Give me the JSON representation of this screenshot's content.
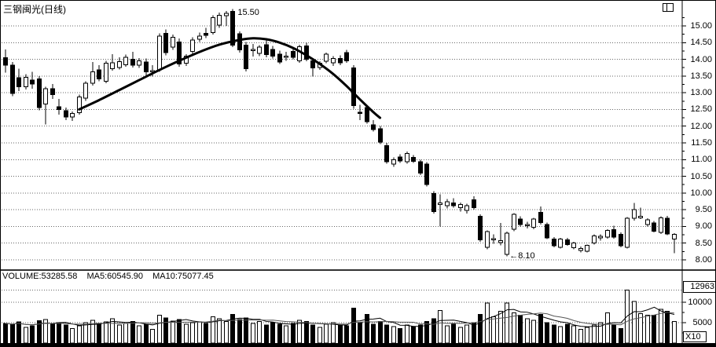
{
  "window": {
    "title": "三钢闽光(日线)"
  },
  "price_axis": {
    "tick_labels": [
      "15.00",
      "14.50",
      "14.00",
      "13.50",
      "13.00",
      "12.50",
      "12.00",
      "11.50",
      "11.00",
      "10.50",
      "10.00",
      "9.50",
      "9.00",
      "8.50",
      "8.00"
    ]
  },
  "volume_axis": {
    "max_label": "12963",
    "tick_labels": [
      "10000",
      "5000"
    ],
    "multiplier_label": "X10"
  },
  "volume_header": {
    "volume": "VOLUME:53285.58",
    "ma5": "MA5:60545.90",
    "ma10": "MA10:75077.45"
  },
  "annotations": {
    "peak": "15.50",
    "low": "←8.10"
  },
  "chart_data": [
    {
      "type": "candlestick",
      "title": "三钢闽光(日线)",
      "ylim": [
        7.8,
        15.6
      ],
      "grid": "dotted horizontal lines every 0.50",
      "legend_position": "none",
      "annotations": [
        {
          "day": 34,
          "price": 15.5,
          "label": "15.50"
        },
        {
          "day": 75,
          "price": 8.1,
          "label": "←8.10"
        }
      ],
      "ma_curve_points": [
        [
          11,
          12.5
        ],
        [
          14,
          12.78
        ],
        [
          17,
          13.08
        ],
        [
          20,
          13.38
        ],
        [
          23,
          13.68
        ],
        [
          26,
          13.96
        ],
        [
          29,
          14.22
        ],
        [
          32,
          14.44
        ],
        [
          35,
          14.58
        ],
        [
          37,
          14.63
        ],
        [
          39,
          14.6
        ],
        [
          41,
          14.5
        ],
        [
          43,
          14.34
        ],
        [
          45,
          14.12
        ],
        [
          47,
          13.86
        ],
        [
          49,
          13.56
        ],
        [
          51,
          13.2
        ],
        [
          53,
          12.8
        ],
        [
          55,
          12.42
        ],
        [
          56,
          12.25
        ]
      ],
      "ohlc": [
        [
          14.05,
          14.3,
          13.6,
          13.82
        ],
        [
          13.82,
          13.92,
          12.9,
          12.98
        ],
        [
          13.45,
          13.72,
          13.05,
          13.18
        ],
        [
          13.18,
          13.55,
          13.1,
          13.46
        ],
        [
          13.38,
          13.62,
          13.12,
          13.26
        ],
        [
          13.42,
          13.5,
          12.48,
          12.56
        ],
        [
          12.66,
          13.18,
          12.05,
          13.12
        ],
        [
          13.12,
          13.26,
          12.82,
          12.94
        ],
        [
          12.58,
          12.82,
          12.34,
          12.5
        ],
        [
          12.46,
          12.56,
          12.18,
          12.28
        ],
        [
          12.28,
          12.44,
          12.16,
          12.38
        ],
        [
          12.4,
          12.94,
          12.34,
          12.88
        ],
        [
          12.84,
          13.34,
          12.76,
          13.28
        ],
        [
          13.28,
          13.92,
          13.22,
          13.62
        ],
        [
          13.68,
          13.82,
          13.34,
          13.42
        ],
        [
          13.34,
          13.96,
          13.28,
          13.88
        ],
        [
          13.72,
          14.16,
          13.66,
          13.9
        ],
        [
          13.76,
          14.06,
          13.7,
          13.93
        ],
        [
          13.84,
          14.14,
          13.78,
          14.06
        ],
        [
          14.0,
          14.22,
          13.76,
          13.82
        ],
        [
          13.82,
          14.04,
          13.74,
          13.96
        ],
        [
          13.92,
          14.02,
          13.52,
          13.62
        ],
        [
          13.64,
          13.82,
          13.48,
          13.66
        ],
        [
          13.68,
          14.78,
          13.62,
          14.7
        ],
        [
          14.78,
          14.9,
          14.12,
          14.2
        ],
        [
          14.36,
          14.74,
          14.28,
          14.66
        ],
        [
          14.52,
          14.62,
          13.78,
          13.86
        ],
        [
          13.88,
          14.16,
          13.8,
          14.1
        ],
        [
          14.24,
          14.66,
          14.16,
          14.58
        ],
        [
          14.6,
          14.8,
          14.52,
          14.7
        ],
        [
          14.78,
          14.94,
          14.64,
          14.72
        ],
        [
          14.8,
          15.32,
          14.74,
          15.25
        ],
        [
          15.02,
          15.4,
          14.94,
          15.32
        ],
        [
          15.3,
          15.45,
          15.0,
          15.38
        ],
        [
          15.44,
          15.5,
          14.36,
          14.42
        ],
        [
          14.76,
          14.84,
          14.2,
          14.28
        ],
        [
          14.42,
          14.52,
          13.64,
          13.72
        ],
        [
          14.28,
          14.46,
          14.08,
          14.3
        ],
        [
          14.18,
          14.42,
          14.1,
          14.36
        ],
        [
          14.44,
          14.64,
          14.06,
          14.14
        ],
        [
          14.3,
          14.4,
          14.02,
          14.1
        ],
        [
          14.16,
          14.26,
          13.86,
          13.92
        ],
        [
          14.08,
          14.22,
          13.96,
          14.1
        ],
        [
          14.24,
          14.34,
          14.0,
          14.06
        ],
        [
          13.96,
          14.44,
          13.9,
          14.38
        ],
        [
          14.4,
          14.5,
          13.94,
          14.0
        ],
        [
          13.96,
          14.04,
          13.48,
          13.74
        ],
        [
          13.76,
          13.94,
          13.68,
          13.88
        ],
        [
          13.94,
          14.2,
          13.88,
          14.15
        ],
        [
          13.9,
          14.1,
          13.8,
          14.02
        ],
        [
          14.02,
          14.12,
          13.82,
          13.9
        ],
        [
          14.2,
          14.28,
          13.9,
          13.96
        ],
        [
          13.74,
          13.82,
          12.52,
          12.62
        ],
        [
          12.42,
          12.64,
          12.18,
          12.38
        ],
        [
          12.56,
          12.62,
          12.08,
          12.14
        ],
        [
          12.04,
          12.18,
          11.84,
          11.9
        ],
        [
          11.92,
          12.0,
          11.46,
          11.52
        ],
        [
          11.42,
          11.5,
          10.88,
          10.94
        ],
        [
          10.86,
          11.06,
          10.78,
          11.0
        ],
        [
          11.08,
          11.16,
          10.9,
          10.96
        ],
        [
          10.94,
          11.24,
          10.88,
          11.18
        ],
        [
          11.06,
          11.14,
          10.9,
          10.95
        ],
        [
          10.94,
          11.0,
          10.54,
          10.6
        ],
        [
          10.86,
          10.92,
          10.2,
          10.26
        ],
        [
          9.98,
          10.06,
          9.38,
          9.44
        ],
        [
          9.66,
          9.96,
          9.0,
          9.7
        ],
        [
          9.62,
          9.82,
          9.54,
          9.74
        ],
        [
          9.7,
          9.84,
          9.56,
          9.62
        ],
        [
          9.56,
          9.72,
          9.44,
          9.66
        ],
        [
          9.48,
          9.68,
          9.38,
          9.62
        ],
        [
          9.8,
          9.9,
          9.5,
          9.56
        ],
        [
          9.3,
          9.36,
          8.54,
          8.6
        ],
        [
          8.38,
          8.88,
          8.32,
          8.84
        ],
        [
          8.6,
          8.76,
          8.48,
          8.64
        ],
        [
          8.52,
          9.1,
          8.44,
          8.58
        ],
        [
          8.16,
          8.84,
          8.1,
          8.8
        ],
        [
          8.92,
          9.4,
          8.86,
          9.36
        ],
        [
          9.22,
          9.3,
          9.0,
          9.06
        ],
        [
          9.02,
          9.14,
          8.94,
          9.06
        ],
        [
          8.98,
          9.26,
          8.92,
          9.22
        ],
        [
          9.42,
          9.6,
          9.06,
          9.12
        ],
        [
          9.06,
          9.12,
          8.62,
          8.66
        ],
        [
          8.62,
          8.68,
          8.38,
          8.42
        ],
        [
          8.38,
          8.66,
          8.34,
          8.62
        ],
        [
          8.6,
          8.66,
          8.42,
          8.46
        ],
        [
          8.36,
          8.54,
          8.32,
          8.5
        ],
        [
          8.28,
          8.4,
          8.22,
          8.34
        ],
        [
          8.26,
          8.46,
          8.22,
          8.44
        ],
        [
          8.5,
          8.76,
          8.46,
          8.72
        ],
        [
          8.66,
          8.76,
          8.58,
          8.7
        ],
        [
          8.68,
          8.92,
          8.64,
          8.88
        ],
        [
          8.9,
          9.02,
          8.64,
          8.68
        ],
        [
          8.76,
          8.82,
          8.38,
          8.42
        ],
        [
          8.38,
          9.28,
          8.34,
          9.24
        ],
        [
          9.24,
          9.7,
          9.18,
          9.5
        ],
        [
          9.28,
          9.56,
          9.22,
          9.3
        ],
        [
          9.06,
          9.24,
          9.0,
          9.2
        ],
        [
          9.1,
          9.16,
          8.82,
          8.86
        ],
        [
          8.82,
          9.3,
          8.78,
          9.26
        ],
        [
          9.24,
          9.32,
          8.74,
          8.78
        ],
        [
          8.62,
          8.8,
          8.2,
          8.76
        ]
      ]
    },
    {
      "type": "bar",
      "name": "VOLUME",
      "ylim": [
        0,
        12963
      ],
      "unit_multiplier": "X10",
      "current": 53285.58,
      "ma5_current": 60545.9,
      "ma10_current": 75077.45,
      "ma_periods": [
        5,
        10
      ],
      "values": [
        4800,
        4500,
        5200,
        3800,
        4200,
        5500,
        5800,
        4600,
        5000,
        4400,
        3600,
        4200,
        5000,
        5600,
        4800,
        5200,
        6000,
        4400,
        4800,
        5300,
        4200,
        4600,
        3400,
        6800,
        6200,
        5400,
        5800,
        4600,
        5000,
        5200,
        4800,
        6400,
        6000,
        5300,
        7000,
        5800,
        6200,
        4800,
        5300,
        4400,
        5000,
        4600,
        4200,
        4800,
        5600,
        5300,
        4400,
        3800,
        4600,
        5000,
        4400,
        4200,
        8600,
        5000,
        7000,
        4600,
        5300,
        4400,
        4000,
        3600,
        4400,
        4000,
        4400,
        5300,
        6000,
        8000,
        4200,
        4600,
        3800,
        4400,
        5000,
        7000,
        9800,
        6400,
        7800,
        9800,
        7400,
        6800,
        6000,
        5600,
        7000,
        5000,
        4400,
        4000,
        4600,
        4200,
        3400,
        3800,
        4400,
        5000,
        7400,
        4400,
        3600,
        12963,
        10200,
        7200,
        6800,
        6800,
        8300,
        7800,
        5329
      ]
    }
  ]
}
